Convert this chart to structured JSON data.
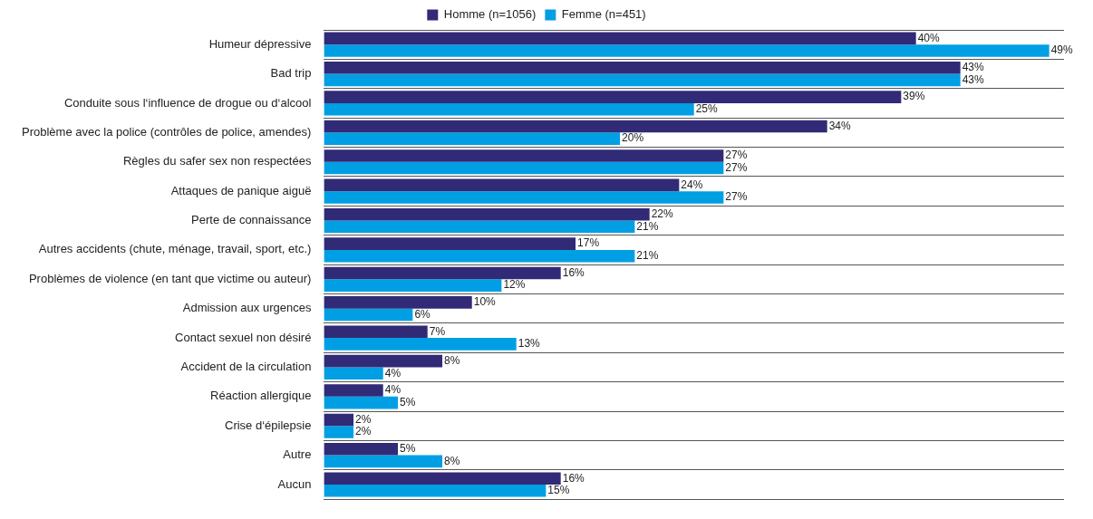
{
  "chart_data": {
    "type": "bar",
    "orientation": "horizontal",
    "grid": "y",
    "legend": "top",
    "categories": [
      "Humeur dépressive",
      "Bad trip",
      "Conduite sous l‘influence de drogue ou d‘alcool",
      "Problème avec la police (contrôles de police, amendes)",
      "Règles du safer sex non respectées",
      "Attaques de panique aiguë",
      "Perte de connaissance",
      "Autres accidents (chute, ménage, travail, sport, etc.)",
      "Problèmes de violence (en tant que victime ou auteur)",
      "Admission aux urgences",
      "Contact sexuel non désiré",
      "Accident de la circulation",
      "Réaction allergique",
      "Crise d‘épilepsie",
      "Autre",
      "Aucun"
    ],
    "series": [
      {
        "name": "Homme (n=1056)",
        "color": "#312a77",
        "values": [
          40,
          43,
          39,
          34,
          27,
          24,
          22,
          17,
          16,
          10,
          7,
          8,
          4,
          2,
          5,
          16
        ],
        "value_labels": [
          "40%",
          "43%",
          "39%",
          "34%",
          "27%",
          "24%",
          "22%",
          "17%",
          "16%",
          "10%",
          "7%",
          "8%",
          "4%",
          "2%",
          "5%",
          "16%"
        ]
      },
      {
        "name": "Femme (n=451)",
        "color": "#009fe3",
        "values": [
          49,
          43,
          25,
          20,
          27,
          27,
          21,
          21,
          12,
          6,
          13,
          4,
          5,
          2,
          8,
          15
        ],
        "value_labels": [
          "49%",
          "43%",
          "25%",
          "20%",
          "27%",
          "27%",
          "21%",
          "21%",
          "12%",
          "6%",
          "13%",
          "4%",
          "5%",
          "2%",
          "8%",
          "15%"
        ]
      }
    ]
  }
}
